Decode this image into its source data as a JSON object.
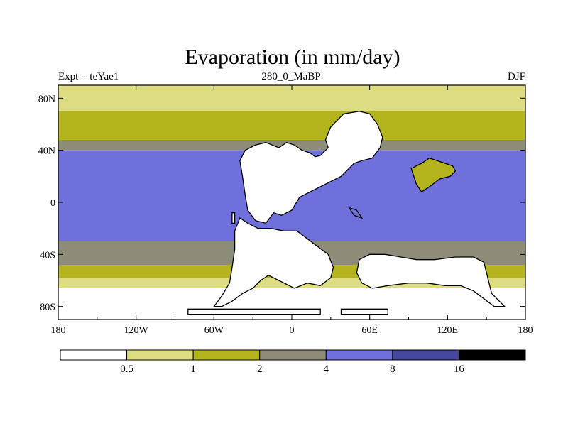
{
  "chart_data": {
    "type": "heatmap",
    "title": "Evaporation (in mm/day)",
    "left_string": "Expt = teYae1",
    "center_string": "280_0_MaBP",
    "right_string": "DJF",
    "x_ticks": [
      "180",
      "120W",
      "60W",
      "0",
      "60E",
      "120E",
      "180"
    ],
    "y_ticks": [
      "80N",
      "40N",
      "0",
      "40S",
      "80S"
    ],
    "x_range": [
      -180,
      180
    ],
    "y_range": [
      -90,
      90
    ],
    "colorbar": {
      "labels": [
        "0.5",
        "1",
        "2",
        "4",
        "8",
        "16"
      ],
      "colors": [
        "#ffffff",
        "#dcdc82",
        "#b4b41e",
        "#8c8c78",
        "#7070dc",
        "#46469a",
        "#000000"
      ]
    },
    "zonal_bands": [
      {
        "lat_min": 70,
        "lat_max": 90,
        "level": 1
      },
      {
        "lat_min": 48,
        "lat_max": 70,
        "level": 2
      },
      {
        "lat_min": 40,
        "lat_max": 48,
        "level": 3
      },
      {
        "lat_min": 0,
        "lat_max": 40,
        "level": 4
      },
      {
        "lat_min": -30,
        "lat_max": 0,
        "level": 4
      },
      {
        "lat_min": -48,
        "lat_max": -30,
        "level": 3
      },
      {
        "lat_min": -58,
        "lat_max": -48,
        "level": 2
      },
      {
        "lat_min": -66,
        "lat_max": -58,
        "level": 1
      },
      {
        "lat_min": -90,
        "lat_max": -66,
        "level": 0
      }
    ],
    "continents": [
      {
        "name": "North Pangea",
        "level": 0,
        "outline": [
          [
            -36,
            40
          ],
          [
            -28,
            44
          ],
          [
            -20,
            46
          ],
          [
            -10,
            42
          ],
          [
            -4,
            46
          ],
          [
            2,
            44
          ],
          [
            8,
            40
          ],
          [
            14,
            38
          ],
          [
            18,
            35
          ],
          [
            22,
            36
          ],
          [
            28,
            42
          ],
          [
            26,
            48
          ],
          [
            30,
            58
          ],
          [
            34,
            62
          ],
          [
            40,
            68
          ],
          [
            52,
            70
          ],
          [
            60,
            68
          ],
          [
            66,
            60
          ],
          [
            70,
            50
          ],
          [
            68,
            42
          ],
          [
            62,
            34
          ],
          [
            54,
            32
          ],
          [
            48,
            30
          ],
          [
            38,
            20
          ],
          [
            26,
            14
          ],
          [
            14,
            8
          ],
          [
            6,
            4
          ],
          [
            0,
            -6
          ],
          [
            -8,
            -10
          ],
          [
            -14,
            -8
          ],
          [
            -20,
            -16
          ],
          [
            -28,
            -14
          ],
          [
            -34,
            -6
          ],
          [
            -36,
            6
          ],
          [
            -38,
            20
          ],
          [
            -40,
            32
          ]
        ]
      },
      {
        "name": "South Pangea",
        "level": 0,
        "outline": [
          [
            -40,
            -12
          ],
          [
            -34,
            -16
          ],
          [
            -26,
            -20
          ],
          [
            -16,
            -20
          ],
          [
            -6,
            -22
          ],
          [
            4,
            -22
          ],
          [
            12,
            -28
          ],
          [
            20,
            -34
          ],
          [
            28,
            -40
          ],
          [
            32,
            -50
          ],
          [
            30,
            -58
          ],
          [
            22,
            -64
          ],
          [
            12,
            -62
          ],
          [
            2,
            -66
          ],
          [
            -10,
            -60
          ],
          [
            -18,
            -56
          ],
          [
            -24,
            -60
          ],
          [
            -30,
            -66
          ],
          [
            -38,
            -70
          ],
          [
            -46,
            -76
          ],
          [
            -54,
            -80
          ],
          [
            -60,
            -80
          ],
          [
            -54,
            -72
          ],
          [
            -48,
            -62
          ],
          [
            -46,
            -50
          ],
          [
            -44,
            -36
          ],
          [
            -44,
            -22
          ]
        ]
      },
      {
        "name": "Eastern Gondwana",
        "level": 0,
        "outline": [
          [
            52,
            -44
          ],
          [
            60,
            -40
          ],
          [
            72,
            -40
          ],
          [
            84,
            -42
          ],
          [
            96,
            -44
          ],
          [
            110,
            -44
          ],
          [
            126,
            -42
          ],
          [
            140,
            -42
          ],
          [
            148,
            -46
          ],
          [
            150,
            -54
          ],
          [
            152,
            -62
          ],
          [
            154,
            -70
          ],
          [
            160,
            -76
          ],
          [
            164,
            -80
          ],
          [
            156,
            -80
          ],
          [
            148,
            -74
          ],
          [
            140,
            -68
          ],
          [
            130,
            -64
          ],
          [
            118,
            -64
          ],
          [
            104,
            -62
          ],
          [
            90,
            -62
          ],
          [
            74,
            -64
          ],
          [
            62,
            -66
          ],
          [
            54,
            -62
          ],
          [
            50,
            -54
          ]
        ]
      },
      {
        "name": "Cathaysia",
        "level": 2,
        "outline": [
          [
            92,
            26
          ],
          [
            100,
            30
          ],
          [
            106,
            34
          ],
          [
            112,
            32
          ],
          [
            118,
            30
          ],
          [
            124,
            28
          ],
          [
            126,
            24
          ],
          [
            122,
            20
          ],
          [
            114,
            18
          ],
          [
            106,
            12
          ],
          [
            100,
            8
          ],
          [
            96,
            14
          ]
        ]
      },
      {
        "name": "South China",
        "level": 4,
        "outline": [
          [
            44,
            -4
          ],
          [
            48,
            -10
          ],
          [
            54,
            -12
          ],
          [
            50,
            -6
          ]
        ]
      },
      {
        "name": "Island A",
        "level": 0,
        "outline": [
          [
            -46,
            -8
          ],
          [
            -44,
            -8
          ],
          [
            -44,
            -16
          ],
          [
            -46,
            -16
          ]
        ]
      },
      {
        "name": "Island B",
        "level": 0,
        "outline": [
          [
            -80,
            -82
          ],
          [
            22,
            -82
          ],
          [
            22,
            -86
          ],
          [
            -80,
            -86
          ]
        ]
      },
      {
        "name": "Island C",
        "level": 0,
        "outline": [
          [
            38,
            -82
          ],
          [
            74,
            -82
          ],
          [
            74,
            -86
          ],
          [
            38,
            -86
          ]
        ]
      }
    ]
  }
}
